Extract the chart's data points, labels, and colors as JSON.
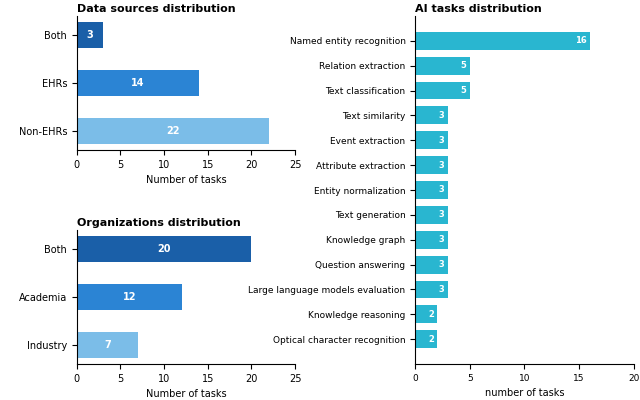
{
  "data_sources": {
    "title": "Data sources distribution",
    "categories": [
      "Both",
      "EHRs",
      "Non-EHRs"
    ],
    "values": [
      3,
      14,
      22
    ],
    "colors": [
      "#1a5fa8",
      "#2b84d4",
      "#7bbde8"
    ],
    "xlabel": "Number of tasks",
    "xlim": [
      0,
      25
    ],
    "xticks": [
      0,
      5,
      10,
      15,
      20,
      25
    ]
  },
  "organizations": {
    "title": "Organizations distribution",
    "categories": [
      "Both",
      "Academia",
      "Industry"
    ],
    "values": [
      20,
      12,
      7
    ],
    "colors": [
      "#1a5fa8",
      "#2b84d4",
      "#7bbde8"
    ],
    "xlabel": "Number of tasks",
    "xlim": [
      0,
      25
    ],
    "xticks": [
      0,
      5,
      10,
      15,
      20,
      25
    ]
  },
  "ai_tasks": {
    "title": "AI tasks distribution",
    "categories": [
      "Named entity recognition",
      "Relation extraction",
      "Text classification",
      "Text similarity",
      "Event extraction",
      "Attribute extraction",
      "Entity normalization",
      "Text generation",
      "Knowledge graph",
      "Question answering",
      "Large language models evaluation",
      "Knowledge reasoning",
      "Optical character recognition"
    ],
    "values": [
      16,
      5,
      5,
      3,
      3,
      3,
      3,
      3,
      3,
      3,
      3,
      2,
      2
    ],
    "color": "#29b6d0",
    "xlabel": "number of tasks",
    "xlim": [
      0,
      20
    ],
    "xticks": [
      0,
      5,
      10,
      15,
      20
    ]
  }
}
